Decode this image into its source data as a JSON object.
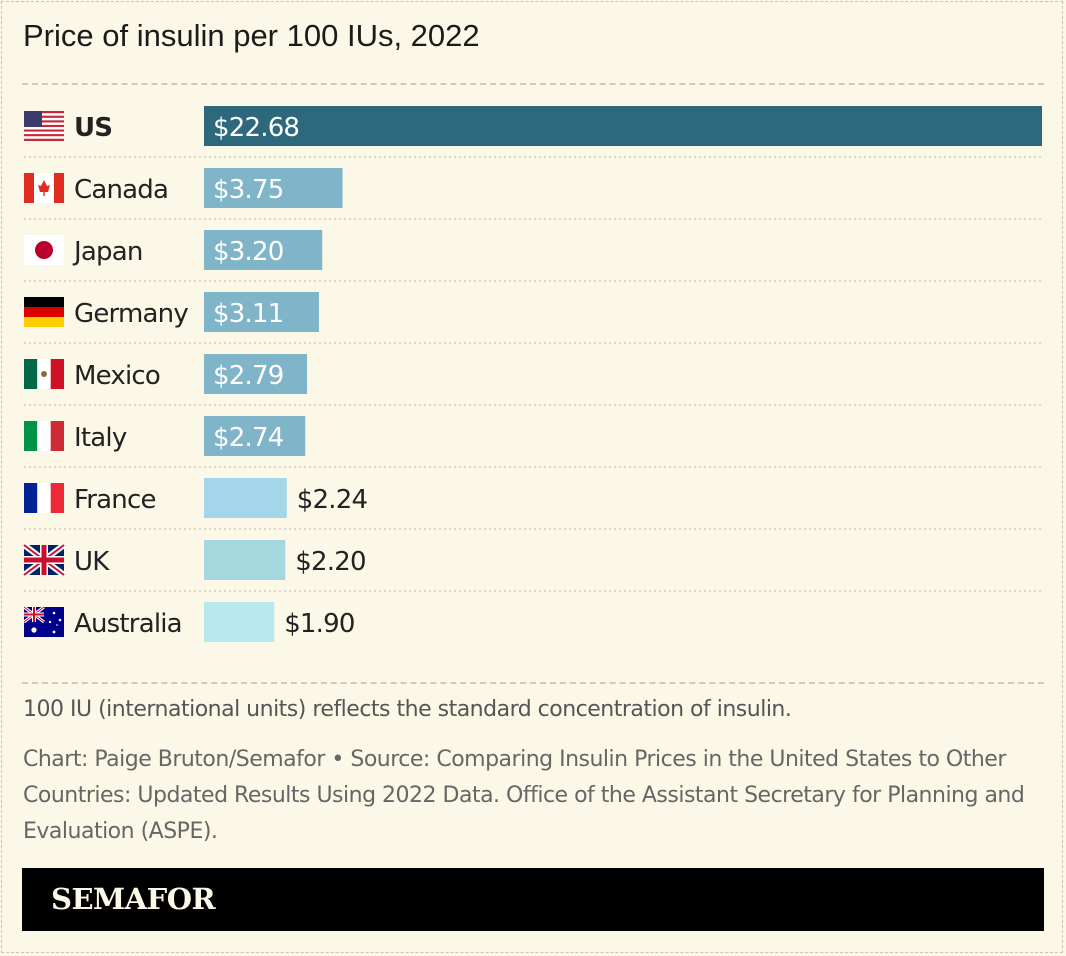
{
  "chart_data": {
    "type": "bar",
    "orientation": "horizontal",
    "title": "Price of insulin per 100 IUs, 2022",
    "categories": [
      "US",
      "Canada",
      "Japan",
      "Germany",
      "Mexico",
      "Italy",
      "France",
      "UK",
      "Australia"
    ],
    "values": [
      22.68,
      3.75,
      3.2,
      3.11,
      2.79,
      2.74,
      2.24,
      2.2,
      1.9
    ],
    "value_labels": [
      "$22.68",
      "$3.75",
      "$3.20",
      "$3.11",
      "$2.79",
      "$2.74",
      "$2.24",
      "$2.20",
      "$1.90"
    ],
    "flags": [
      "us-flag",
      "canada-flag",
      "japan-flag",
      "germany-flag",
      "mexico-flag",
      "italy-flag",
      "france-flag",
      "uk-flag",
      "australia-flag"
    ],
    "colors": [
      "#2e687c",
      "#80b4c9",
      "#80b4c9",
      "#80b4c9",
      "#80b4c9",
      "#80b4c9",
      "#a3d6e8",
      "#a5d7de",
      "#b8e8ee"
    ],
    "highlight": "US",
    "xlim": [
      0,
      22.68
    ],
    "grid": false,
    "legend": "none"
  },
  "note": "100 IU (international units) reflects the standard concentration of insulin.",
  "source": "Chart: Paige Bruton/Semafor • Source: Comparing Insulin Prices in the United States to Other Countries: Updated Results Using 2022 Data. Office of the Assistant Secretary for Planning and Evaluation (ASPE).",
  "footer": {
    "logo": "SEMAFOR"
  }
}
